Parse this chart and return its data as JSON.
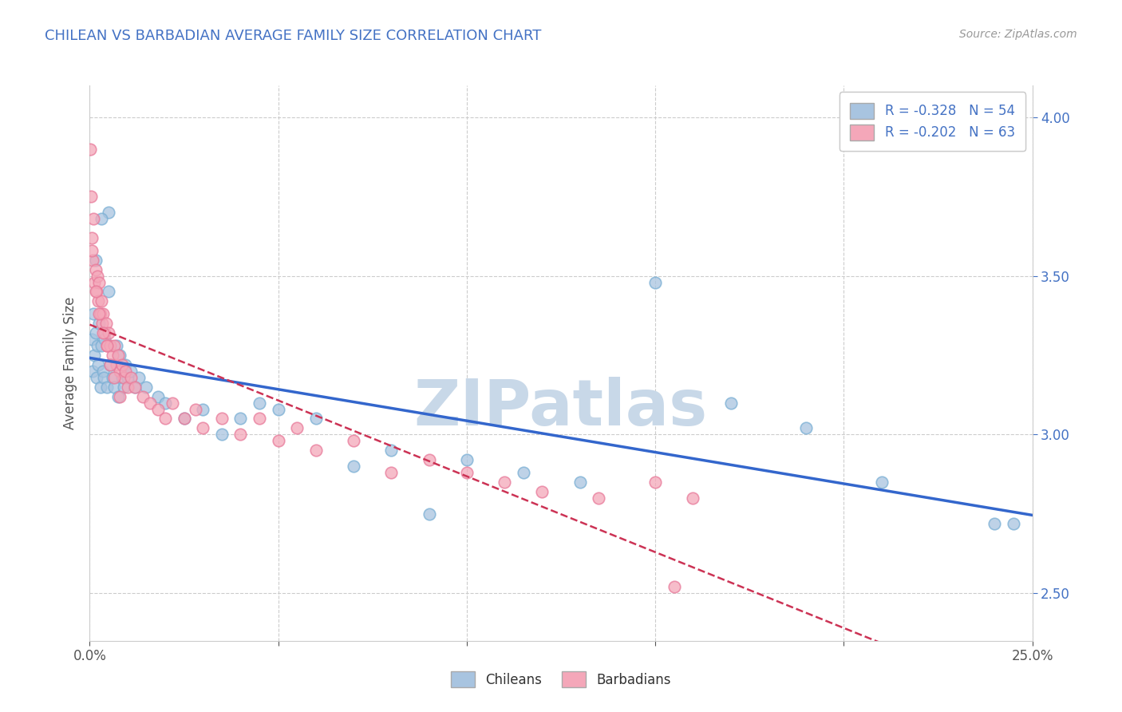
{
  "title": "CHILEAN VS BARBADIAN AVERAGE FAMILY SIZE CORRELATION CHART",
  "source_text": "Source: ZipAtlas.com",
  "ylabel": "Average Family Size",
  "y_ticks": [
    2.5,
    3.0,
    3.5,
    4.0
  ],
  "x_lim": [
    0,
    25
  ],
  "y_lim": [
    2.35,
    4.1
  ],
  "legend_r_chileans": "R = -0.328",
  "legend_n_chileans": "N = 54",
  "legend_r_barbadians": "R = -0.202",
  "legend_n_barbadians": "N = 63",
  "chilean_color": "#a8c4e0",
  "chilean_edge_color": "#7aafd4",
  "barbadian_color": "#f4a7b9",
  "barbadian_edge_color": "#e87a9a",
  "chilean_line_color": "#3366cc",
  "barbadian_line_color": "#cc3355",
  "watermark_color": "#c8d8e8",
  "chilean_x": [
    0.05,
    0.08,
    0.1,
    0.12,
    0.15,
    0.18,
    0.2,
    0.22,
    0.25,
    0.28,
    0.3,
    0.35,
    0.38,
    0.4,
    0.45,
    0.5,
    0.55,
    0.6,
    0.65,
    0.7,
    0.75,
    0.8,
    0.85,
    0.9,
    0.95,
    1.0,
    1.1,
    1.2,
    1.3,
    1.5,
    1.8,
    2.0,
    2.5,
    3.0,
    3.5,
    4.0,
    4.5,
    5.0,
    6.0,
    7.0,
    8.0,
    9.0,
    10.0,
    11.5,
    13.0,
    15.0,
    17.0,
    19.0,
    21.0,
    24.0,
    0.15,
    0.3,
    0.5,
    24.5
  ],
  "chilean_y": [
    3.3,
    3.2,
    3.38,
    3.25,
    3.32,
    3.18,
    3.28,
    3.22,
    3.35,
    3.15,
    3.28,
    3.2,
    3.18,
    3.3,
    3.15,
    3.7,
    3.22,
    3.18,
    3.15,
    3.28,
    3.12,
    3.25,
    3.18,
    3.15,
    3.22,
    3.18,
    3.2,
    3.15,
    3.18,
    3.15,
    3.12,
    3.1,
    3.05,
    3.08,
    3.0,
    3.05,
    3.1,
    3.08,
    3.05,
    2.9,
    2.95,
    2.75,
    2.92,
    2.88,
    2.85,
    3.48,
    3.1,
    3.02,
    2.85,
    2.72,
    3.55,
    3.68,
    3.45,
    2.72
  ],
  "barbadian_x": [
    0.02,
    0.04,
    0.06,
    0.08,
    0.1,
    0.12,
    0.15,
    0.18,
    0.2,
    0.22,
    0.25,
    0.28,
    0.3,
    0.33,
    0.36,
    0.4,
    0.43,
    0.46,
    0.5,
    0.55,
    0.6,
    0.65,
    0.7,
    0.75,
    0.8,
    0.85,
    0.9,
    0.95,
    1.0,
    1.1,
    1.2,
    1.4,
    1.6,
    1.8,
    2.0,
    2.2,
    2.5,
    2.8,
    3.0,
    3.5,
    4.0,
    4.5,
    5.0,
    5.5,
    6.0,
    7.0,
    8.0,
    9.0,
    10.0,
    11.0,
    12.0,
    13.5,
    15.0,
    16.0,
    0.05,
    0.15,
    0.25,
    0.35,
    0.45,
    0.55,
    0.65,
    0.8,
    15.5
  ],
  "barbadian_y": [
    3.9,
    3.75,
    3.62,
    3.55,
    3.68,
    3.48,
    3.52,
    3.45,
    3.5,
    3.42,
    3.48,
    3.38,
    3.42,
    3.35,
    3.38,
    3.32,
    3.35,
    3.28,
    3.32,
    3.28,
    3.25,
    3.28,
    3.22,
    3.25,
    3.2,
    3.22,
    3.18,
    3.2,
    3.15,
    3.18,
    3.15,
    3.12,
    3.1,
    3.08,
    3.05,
    3.1,
    3.05,
    3.08,
    3.02,
    3.05,
    3.0,
    3.05,
    2.98,
    3.02,
    2.95,
    2.98,
    2.88,
    2.92,
    2.88,
    2.85,
    2.82,
    2.8,
    2.85,
    2.8,
    3.58,
    3.45,
    3.38,
    3.32,
    3.28,
    3.22,
    3.18,
    3.12,
    2.52
  ]
}
